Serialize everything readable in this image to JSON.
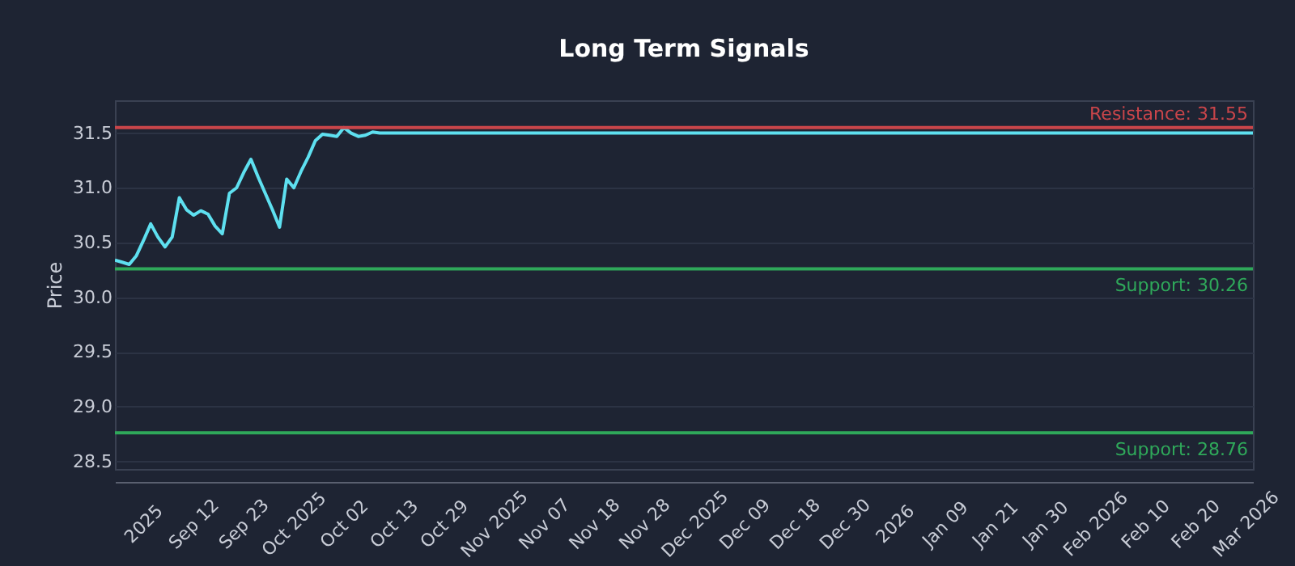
{
  "chart_data": {
    "type": "line",
    "title": "Long Term Signals",
    "ylabel": "Price",
    "categories": [
      null,
      null,
      null,
      null,
      "2025",
      null,
      null,
      null,
      null,
      null,
      null,
      "Sep 12",
      null,
      null,
      null,
      null,
      null,
      null,
      "Sep 23",
      null,
      null,
      null,
      null,
      null,
      null,
      "Oct 2025",
      null,
      null,
      null,
      null,
      null,
      null,
      "Oct 02",
      null,
      null,
      null,
      null,
      null,
      null,
      "Oct 13",
      null,
      null,
      null,
      null,
      null,
      null,
      "Oct 29",
      null,
      null,
      null,
      null,
      null,
      null,
      "Nov 2025",
      null,
      null,
      null,
      null,
      null,
      null,
      "Nov 07",
      null,
      null,
      null,
      null,
      null,
      null,
      "Nov 18",
      null,
      null,
      null,
      null,
      null,
      null,
      "Nov 28",
      null,
      null,
      null,
      null,
      null,
      null,
      "Dec 2025",
      null,
      null,
      null,
      null,
      null,
      null,
      "Dec 09",
      null,
      null,
      null,
      null,
      null,
      null,
      "Dec 18",
      null,
      null,
      null,
      null,
      null,
      null,
      "Dec 30",
      null,
      null,
      null,
      null,
      null,
      null,
      "2026",
      null,
      null,
      null,
      null,
      null,
      null,
      "Jan 09",
      null,
      null,
      null,
      null,
      null,
      null,
      "Jan 21",
      null,
      null,
      null,
      null,
      null,
      null,
      "Jan 30",
      null,
      null,
      null,
      null,
      null,
      null,
      "Feb 2026",
      null,
      null,
      null,
      null,
      null,
      null,
      "Feb 10",
      null,
      null,
      null,
      null,
      null,
      null,
      "Feb 20",
      null,
      null,
      null,
      null,
      null,
      null,
      "Mar 2026",
      null
    ],
    "series": [
      {
        "color": "#5ee0f0",
        "values": [
          30.34,
          30.32,
          30.3,
          30.38,
          30.52,
          30.67,
          30.55,
          30.46,
          30.55,
          30.91,
          30.8,
          30.75,
          30.79,
          30.76,
          30.65,
          30.58,
          30.95,
          31.0,
          31.14,
          31.26,
          31.1,
          30.95,
          30.8,
          30.64,
          31.08,
          31.0,
          31.15,
          31.28,
          31.43,
          31.49,
          31.48,
          31.47,
          31.55,
          31.5,
          31.47,
          31.48,
          31.51,
          31.5,
          31.5,
          31.5,
          31.5,
          31.5,
          31.5,
          31.5,
          31.5,
          31.5,
          31.5,
          31.5,
          31.5,
          31.5,
          31.5,
          31.5,
          31.5,
          31.5,
          31.5,
          31.5,
          31.5,
          31.5,
          31.5,
          31.5,
          31.5,
          31.5,
          31.5,
          31.5,
          31.5,
          31.5,
          31.5,
          31.5,
          31.5,
          31.5,
          31.5,
          31.5,
          31.5,
          31.5,
          31.5,
          31.5,
          31.5,
          31.5,
          31.5,
          31.5,
          31.5,
          31.5,
          31.5,
          31.5,
          31.5,
          31.5,
          31.5,
          31.5,
          31.5,
          31.5,
          31.5,
          31.5,
          31.5,
          31.5,
          31.5,
          31.5,
          31.5,
          31.5,
          31.5,
          31.5,
          31.5,
          31.5,
          31.5,
          31.5,
          31.5,
          31.5,
          31.5,
          31.5,
          31.5,
          31.5,
          31.5,
          31.5,
          31.5,
          31.5,
          31.5,
          31.5,
          31.5,
          31.5,
          31.5,
          31.5,
          31.5,
          31.5,
          31.5,
          31.5,
          31.5,
          31.5,
          31.5,
          31.5,
          31.5,
          31.5,
          31.5,
          31.5,
          31.5,
          31.5,
          31.5,
          31.5,
          31.5,
          31.5,
          31.5,
          31.5,
          31.5,
          31.5,
          31.5,
          31.5,
          31.5,
          31.5,
          31.5,
          31.5,
          31.5,
          31.5,
          31.5,
          31.5,
          31.5,
          31.5,
          31.5,
          31.5,
          31.5,
          31.5,
          31.5,
          31.5
        ]
      }
    ],
    "ylim": [
      28.43,
      31.8
    ],
    "yticks": [
      28.5,
      {
        "value": 29,
        "label": "29.0"
      },
      29.5,
      {
        "value": 30,
        "label": "30.0"
      },
      30.5,
      {
        "value": 31,
        "label": "31.0"
      },
      31.5
    ],
    "grid": "y",
    "ref_lines": [
      {
        "axis": "y",
        "value": 31.55,
        "label": "Resistance: 31.55",
        "color": "#c9454a"
      },
      {
        "axis": "y",
        "value": 30.26,
        "label": "Support: 30.26",
        "color": "#2fa85a"
      },
      {
        "axis": "y",
        "value": 28.76,
        "label": "Support: 28.76",
        "color": "#2fa85a"
      }
    ]
  }
}
